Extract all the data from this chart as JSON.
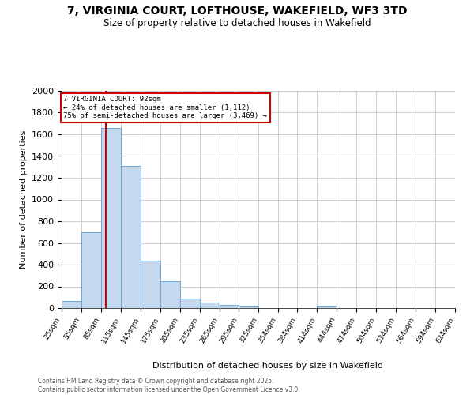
{
  "title": "7, VIRGINIA COURT, LOFTHOUSE, WAKEFIELD, WF3 3TD",
  "subtitle": "Size of property relative to detached houses in Wakefield",
  "xlabel": "Distribution of detached houses by size in Wakefield",
  "ylabel": "Number of detached properties",
  "footer_line1": "Contains HM Land Registry data © Crown copyright and database right 2025.",
  "footer_line2": "Contains public sector information licensed under the Open Government Licence v3.0.",
  "bar_color": "#c5d9ee",
  "bar_edge_color": "#6aaad4",
  "grid_color": "#c8c8c8",
  "bg_color": "#ffffff",
  "annotation_box_color": "#cc0000",
  "red_line_color": "#cc0000",
  "property_sqm": 92,
  "annotation_text_line1": "7 VIRGINIA COURT: 92sqm",
  "annotation_text_line2": "← 24% of detached houses are smaller (1,112)",
  "annotation_text_line3": "75% of semi-detached houses are larger (3,469) →",
  "bins": [
    25,
    55,
    85,
    115,
    145,
    175,
    205,
    235,
    265,
    295,
    325,
    354,
    384,
    414,
    444,
    474,
    504,
    534,
    564,
    594,
    624
  ],
  "bin_labels": [
    "25sqm",
    "55sqm",
    "85sqm",
    "115sqm",
    "145sqm",
    "175sqm",
    "205sqm",
    "235sqm",
    "265sqm",
    "295sqm",
    "325sqm",
    "354sqm",
    "384sqm",
    "414sqm",
    "444sqm",
    "474sqm",
    "504sqm",
    "534sqm",
    "564sqm",
    "594sqm",
    "624sqm"
  ],
  "counts": [
    65,
    700,
    1660,
    1310,
    440,
    250,
    90,
    50,
    30,
    25,
    0,
    0,
    0,
    20,
    0,
    0,
    0,
    0,
    0,
    0
  ],
  "ylim": [
    0,
    2000
  ],
  "yticks": [
    0,
    200,
    400,
    600,
    800,
    1000,
    1200,
    1400,
    1600,
    1800,
    2000
  ]
}
